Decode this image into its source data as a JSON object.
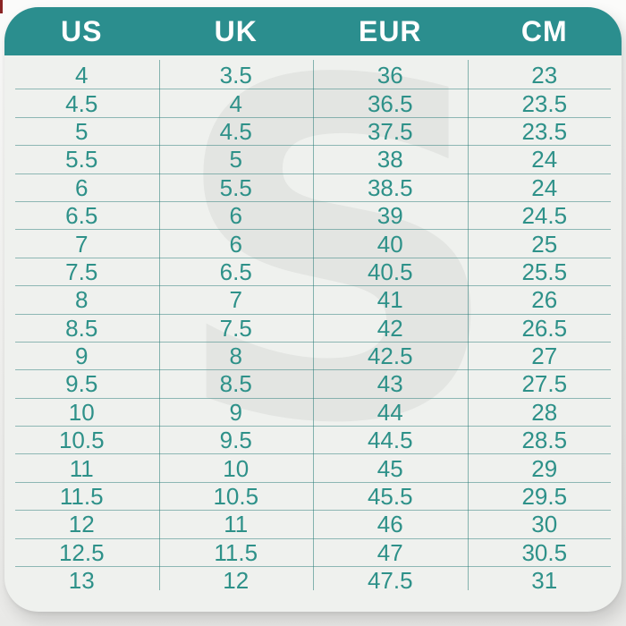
{
  "chart_data": {
    "type": "table",
    "columns": [
      "US",
      "UK",
      "EUR",
      "CM"
    ],
    "rows": [
      [
        "4",
        "3.5",
        "36",
        "23"
      ],
      [
        "4.5",
        "4",
        "36.5",
        "23.5"
      ],
      [
        "5",
        "4.5",
        "37.5",
        "23.5"
      ],
      [
        "5.5",
        "5",
        "38",
        "24"
      ],
      [
        "6",
        "5.5",
        "38.5",
        "24"
      ],
      [
        "6.5",
        "6",
        "39",
        "24.5"
      ],
      [
        "7",
        "6",
        "40",
        "25"
      ],
      [
        "7.5",
        "6.5",
        "40.5",
        "25.5"
      ],
      [
        "8",
        "7",
        "41",
        "26"
      ],
      [
        "8.5",
        "7.5",
        "42",
        "26.5"
      ],
      [
        "9",
        "8",
        "42.5",
        "27"
      ],
      [
        "9.5",
        "8.5",
        "43",
        "27.5"
      ],
      [
        "10",
        "9",
        "44",
        "28"
      ],
      [
        "10.5",
        "9.5",
        "44.5",
        "28.5"
      ],
      [
        "11",
        "10",
        "45",
        "29"
      ],
      [
        "11.5",
        "10.5",
        "45.5",
        "29.5"
      ],
      [
        "12",
        "11",
        "46",
        "30"
      ],
      [
        "12.5",
        "11.5",
        "47",
        "30.5"
      ],
      [
        "13",
        "12",
        "47.5",
        "31"
      ]
    ]
  },
  "watermark": {
    "letter": "S"
  },
  "colors": {
    "header_teal": "#2b8e8e",
    "text_teal": "#2e9189",
    "card_body": "#eff1ee",
    "line_teal": "#2b7d7a"
  }
}
